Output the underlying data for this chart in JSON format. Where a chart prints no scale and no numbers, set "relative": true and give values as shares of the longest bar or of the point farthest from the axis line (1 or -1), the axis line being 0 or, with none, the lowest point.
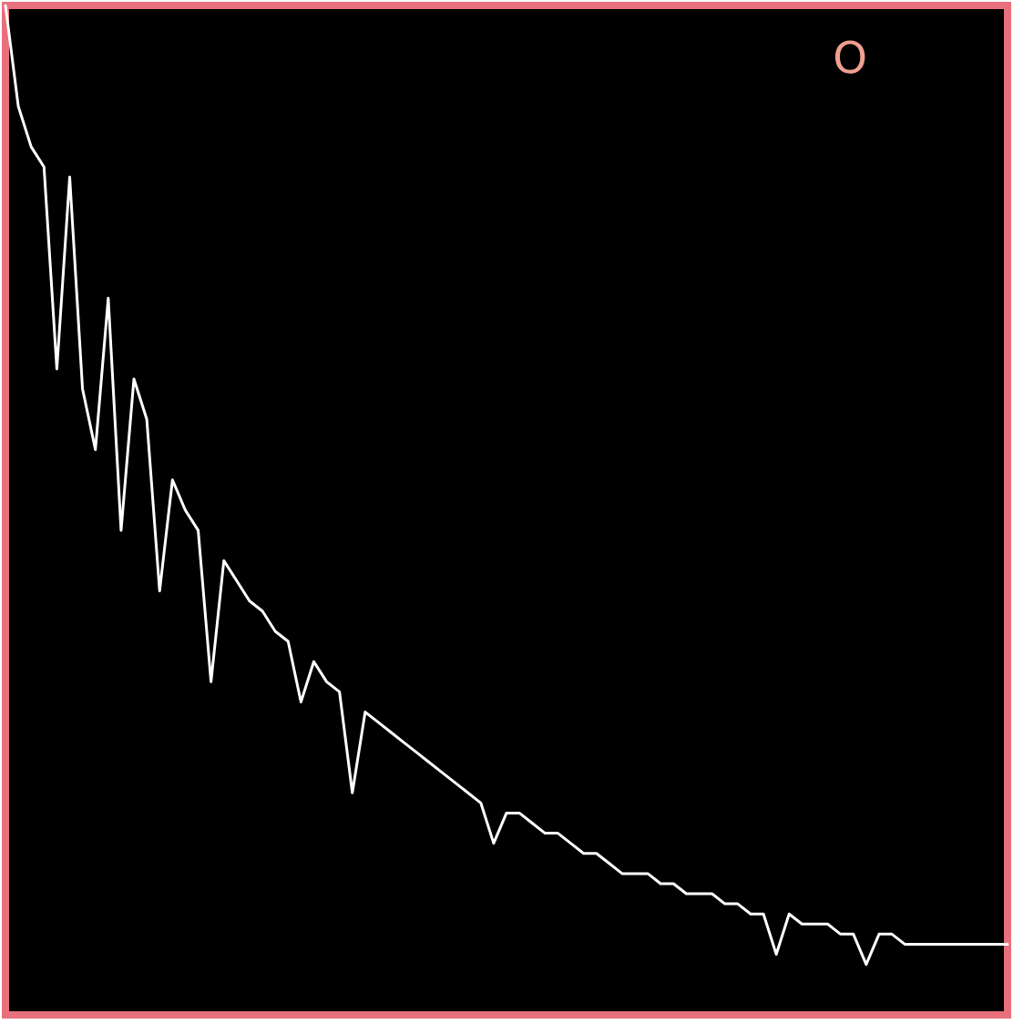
{
  "chart_data": {
    "type": "line",
    "relative": true,
    "line_style": "solid",
    "tick_labels": false,
    "annotations": [
      "O"
    ],
    "categories": [
      null,
      null,
      null,
      null,
      null,
      null,
      null,
      null,
      null,
      null,
      null,
      null,
      null,
      null,
      null,
      null,
      null,
      null,
      null,
      null,
      null,
      null,
      null,
      null,
      null,
      null,
      null,
      null,
      null,
      null,
      null,
      null,
      null,
      null,
      null,
      null,
      null,
      null,
      null,
      null,
      null,
      null,
      null,
      null,
      null,
      null,
      null,
      null,
      null,
      null,
      null,
      null,
      null,
      null,
      null,
      null,
      null,
      null,
      null,
      null,
      null,
      null,
      null,
      null,
      null,
      null,
      null,
      null,
      null,
      null,
      null,
      null,
      null,
      null,
      null,
      null,
      null,
      null,
      null
    ],
    "series": [
      {
        "color": "#ffffff",
        "values": [
          1.0,
          0.9,
          0.86,
          0.84,
          0.64,
          0.83,
          0.62,
          0.56,
          0.71,
          0.48,
          0.63,
          0.59,
          0.42,
          0.53,
          0.5,
          0.48,
          0.33,
          0.45,
          0.43,
          0.41,
          0.4,
          0.38,
          0.37,
          0.31,
          0.35,
          0.33,
          0.32,
          0.22,
          0.3,
          0.29,
          0.28,
          0.27,
          0.26,
          0.25,
          0.24,
          0.23,
          0.22,
          0.21,
          0.17,
          0.2,
          0.2,
          0.19,
          0.18,
          0.18,
          0.17,
          0.16,
          0.16,
          0.15,
          0.14,
          0.14,
          0.14,
          0.13,
          0.13,
          0.12,
          0.12,
          0.12,
          0.11,
          0.11,
          0.1,
          0.1,
          0.06,
          0.1,
          0.09,
          0.09,
          0.09,
          0.08,
          0.08,
          0.05,
          0.08,
          0.08,
          0.07,
          0.07,
          0.07,
          0.07,
          0.07,
          0.07,
          0.07,
          0.07,
          0.07
        ]
      }
    ]
  }
}
